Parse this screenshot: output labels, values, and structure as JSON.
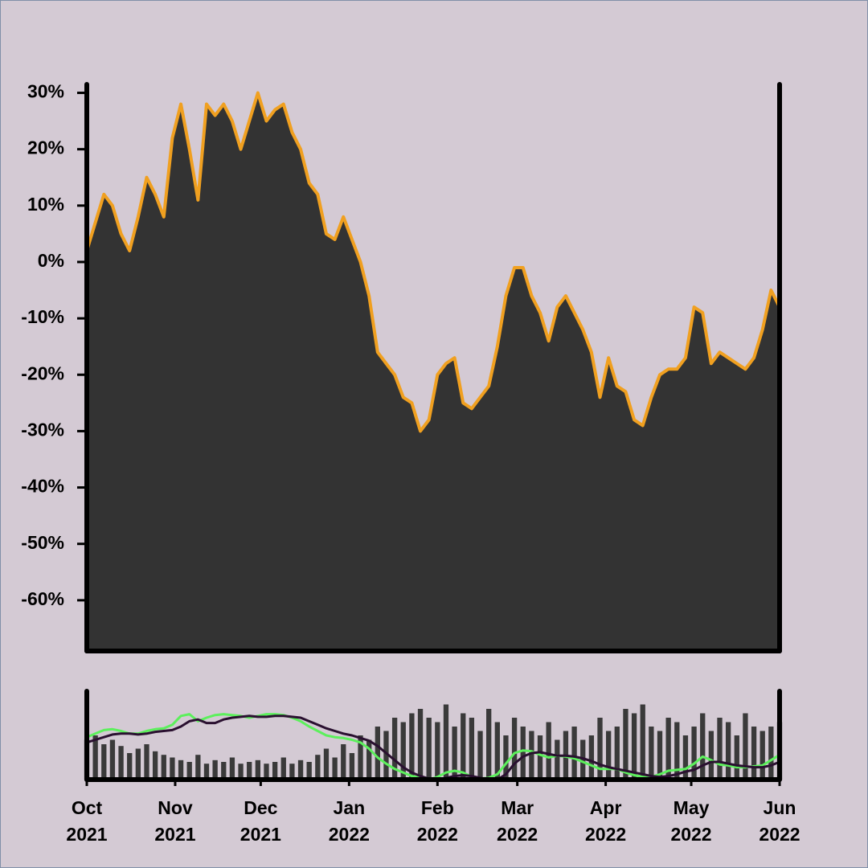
{
  "chart_data": [
    {
      "type": "area",
      "color": "#f0a020",
      "fill": "#333333",
      "x": [
        0,
        3,
        6,
        9,
        12,
        15,
        18,
        21,
        24,
        27,
        30,
        33,
        36,
        39,
        42,
        45,
        48,
        51,
        54,
        57,
        60,
        63,
        66,
        69,
        72,
        75,
        78,
        81,
        84,
        87,
        90,
        93,
        96,
        99,
        102,
        105,
        108,
        111,
        114,
        117,
        120,
        123,
        126,
        129,
        132,
        135,
        138,
        141,
        144,
        147,
        150,
        153,
        156,
        159,
        162,
        165,
        168,
        171,
        174,
        177,
        180,
        183,
        186,
        189,
        192,
        195,
        198,
        201,
        204,
        207,
        210,
        213,
        216,
        219,
        222,
        225,
        228,
        231,
        234,
        237,
        240,
        243
      ],
      "values": [
        2,
        7,
        12,
        10,
        5,
        2,
        8,
        15,
        12,
        8,
        22,
        28,
        20,
        11,
        28,
        26,
        28,
        25,
        20,
        25,
        30,
        25,
        27,
        28,
        23,
        20,
        14,
        12,
        5,
        4,
        8,
        4,
        0,
        -6,
        -16,
        -18,
        -20,
        -24,
        -25,
        -30,
        -28,
        -20,
        -18,
        -17,
        -25,
        -26,
        -24,
        -22,
        -15,
        -6,
        -1,
        -1,
        -6,
        -9,
        -14,
        -8,
        -6,
        -9,
        -12,
        -16,
        -24,
        -17,
        -22,
        -23,
        -28,
        -29,
        -24,
        -20,
        -19,
        -19,
        -17,
        -8,
        -9,
        -18,
        -16,
        -17,
        -18,
        -19,
        -17,
        -12,
        -5,
        -8
      ],
      "xlim": [
        0,
        243
      ],
      "ylim": [
        -69,
        31.5
      ],
      "yticks": [
        {
          "value": 30,
          "label": "30%"
        },
        {
          "value": 20,
          "label": "20%"
        },
        {
          "value": 10,
          "label": "10%"
        },
        {
          "value": 0,
          "label": "0%"
        },
        {
          "value": -10,
          "label": "-10%"
        },
        {
          "value": -20,
          "label": "-20%"
        },
        {
          "value": -30,
          "label": "-30%"
        },
        {
          "value": -40,
          "label": "-40%"
        },
        {
          "value": -50,
          "label": "-50%"
        },
        {
          "value": -60,
          "label": "-60%"
        }
      ]
    },
    {
      "type": "bar",
      "x": [
        0,
        3,
        6,
        9,
        12,
        15,
        18,
        21,
        24,
        27,
        30,
        33,
        36,
        39,
        42,
        45,
        48,
        51,
        54,
        57,
        60,
        63,
        66,
        69,
        72,
        75,
        78,
        81,
        84,
        87,
        90,
        93,
        96,
        99,
        102,
        105,
        108,
        111,
        114,
        117,
        120,
        123,
        126,
        129,
        132,
        135,
        138,
        141,
        144,
        147,
        150,
        153,
        156,
        159,
        162,
        165,
        168,
        171,
        174,
        177,
        180,
        183,
        186,
        189,
        192,
        195,
        198,
        201,
        204,
        207,
        210,
        213,
        216,
        219,
        222,
        225,
        228,
        231,
        234,
        237,
        240,
        243
      ],
      "xlim": [
        0,
        243
      ],
      "ylim": [
        0,
        100
      ],
      "xticks": [
        {
          "value": 0,
          "label": [
            "Oct",
            "2021"
          ]
        },
        {
          "value": 31,
          "label": [
            "Nov",
            "2021"
          ]
        },
        {
          "value": 61,
          "label": [
            "Dec",
            "2021"
          ]
        },
        {
          "value": 92,
          "label": [
            "Jan",
            "2022"
          ]
        },
        {
          "value": 123,
          "label": [
            "Feb",
            "2022"
          ]
        },
        {
          "value": 151,
          "label": [
            "Mar",
            "2022"
          ]
        },
        {
          "value": 182,
          "label": [
            "Apr",
            "2022"
          ]
        },
        {
          "value": 212,
          "label": [
            "May",
            "2022"
          ]
        },
        {
          "value": 243,
          "label": [
            "Jun",
            "2022"
          ]
        }
      ],
      "series": [
        {
          "type": "bar",
          "color": "#3a3a3a",
          "values": [
            45,
            50,
            40,
            45,
            38,
            30,
            35,
            40,
            32,
            28,
            25,
            22,
            20,
            28,
            18,
            22,
            20,
            25,
            18,
            20,
            22,
            18,
            20,
            25,
            18,
            22,
            20,
            28,
            35,
            25,
            40,
            30,
            50,
            45,
            60,
            55,
            70,
            65,
            75,
            80,
            70,
            65,
            85,
            60,
            75,
            70,
            55,
            80,
            65,
            50,
            70,
            60,
            55,
            50,
            65,
            45,
            55,
            60,
            45,
            50,
            70,
            55,
            60,
            80,
            75,
            85,
            60,
            55,
            70,
            65,
            50,
            60,
            75,
            55,
            70,
            65,
            50,
            75,
            60,
            55,
            60,
            65
          ]
        },
        {
          "type": "line",
          "color": "#5cf05c",
          "values": [
            48,
            52,
            56,
            57,
            55,
            52,
            52,
            55,
            57,
            58,
            62,
            72,
            74,
            66,
            70,
            73,
            74,
            73,
            72,
            70,
            72,
            74,
            74,
            73,
            70,
            66,
            60,
            55,
            50,
            48,
            47,
            45,
            42,
            35,
            25,
            18,
            12,
            8,
            4,
            2,
            0,
            3,
            8,
            10,
            8,
            3,
            1,
            2,
            6,
            18,
            30,
            33,
            32,
            28,
            25,
            27,
            26,
            24,
            20,
            16,
            12,
            12,
            12,
            8,
            5,
            3,
            3,
            6,
            10,
            11,
            12,
            18,
            26,
            22,
            17,
            16,
            14,
            14,
            15,
            16,
            22,
            28
          ]
        },
        {
          "type": "line",
          "color": "#2a1030",
          "values": [
            42,
            45,
            48,
            51,
            52,
            52,
            51,
            52,
            54,
            55,
            56,
            60,
            66,
            68,
            64,
            64,
            68,
            70,
            71,
            72,
            71,
            71,
            72,
            72,
            71,
            70,
            66,
            62,
            58,
            55,
            52,
            50,
            47,
            44,
            38,
            30,
            22,
            14,
            8,
            4,
            1,
            0,
            2,
            4,
            5,
            4,
            2,
            0,
            0,
            6,
            18,
            26,
            30,
            31,
            29,
            27,
            27,
            26,
            24,
            21,
            17,
            14,
            12,
            10,
            8,
            6,
            4,
            3,
            4,
            6,
            9,
            11,
            16,
            20,
            20,
            18,
            16,
            15,
            14,
            14,
            16,
            20
          ]
        }
      ]
    }
  ]
}
